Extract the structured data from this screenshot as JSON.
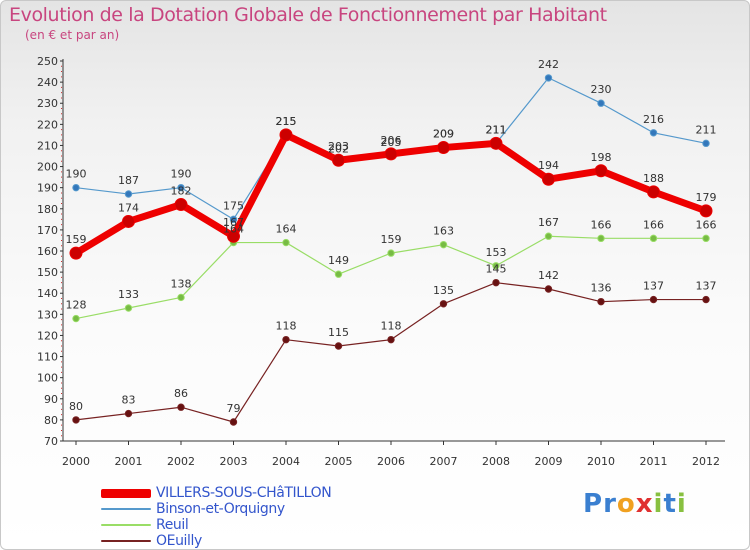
{
  "chart_data": {
    "type": "line",
    "title": "Evolution de la Dotation Globale de Fonctionnement par Habitant",
    "subtitle": "(en € et par an)",
    "x": [
      "2000",
      "2001",
      "2002",
      "2003",
      "2004",
      "2005",
      "2006",
      "2007",
      "2008",
      "2009",
      "2010",
      "2011",
      "2012"
    ],
    "ylim": [
      70,
      250
    ],
    "yticks": [
      70,
      80,
      90,
      100,
      110,
      120,
      130,
      140,
      150,
      160,
      170,
      180,
      190,
      200,
      210,
      220,
      230,
      240,
      250
    ],
    "grid": false,
    "legend_position": "bottom-left",
    "series": [
      {
        "name": "VILLERS-SOUS-CHâTILLON",
        "color": "#ee0000",
        "values": [
          159,
          174,
          182,
          167,
          215,
          203,
          206,
          209,
          211,
          194,
          198,
          188,
          179
        ]
      },
      {
        "name": "Binson-et-Orquigny",
        "color": "#5599cc",
        "values": [
          190,
          187,
          190,
          175,
          215,
          202,
          205,
          209,
          211,
          242,
          230,
          216,
          211
        ]
      },
      {
        "name": "Reuil",
        "color": "#99dd66",
        "values": [
          128,
          133,
          138,
          164,
          164,
          149,
          159,
          163,
          153,
          167,
          166,
          166,
          166
        ]
      },
      {
        "name": "OEuilly",
        "color": "#772222",
        "values": [
          80,
          83,
          86,
          79,
          118,
          115,
          118,
          135,
          145,
          142,
          136,
          137,
          137
        ]
      }
    ]
  },
  "logo": {
    "letters": [
      "P",
      "r",
      "o",
      "x",
      "i",
      "t",
      "i"
    ],
    "colors": [
      "#3a7fd0",
      "#3a7fd0",
      "#f0a020",
      "#e03030",
      "#88c040",
      "#3a7fd0",
      "#88c040"
    ]
  }
}
